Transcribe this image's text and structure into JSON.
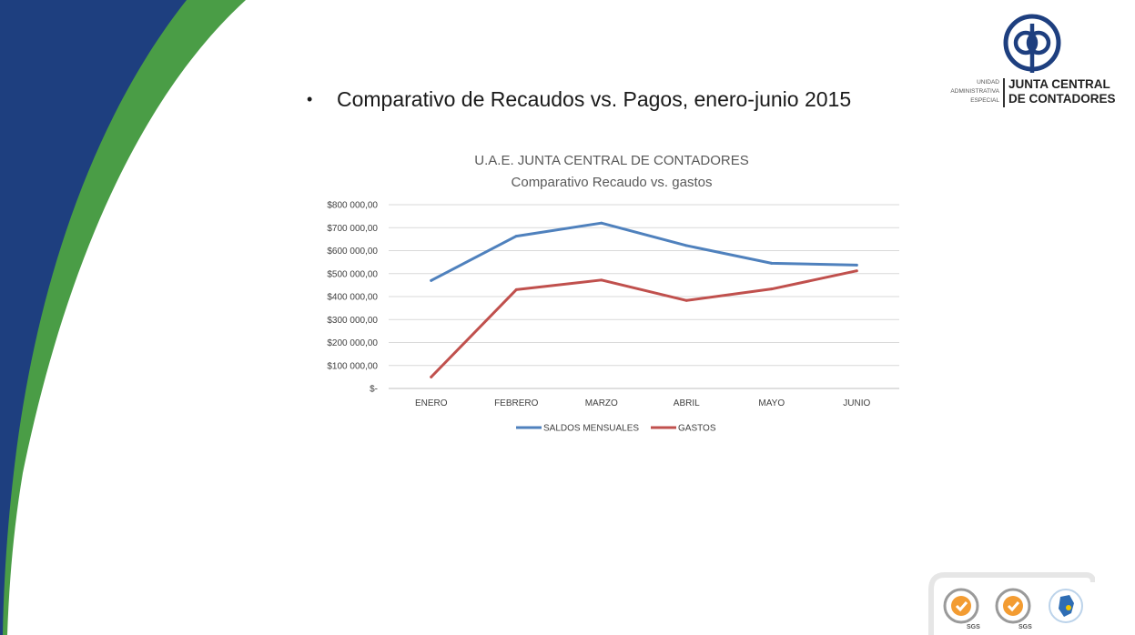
{
  "slide": {
    "bullet": "•",
    "headline": "Comparativo de Recaudos vs. Pagos, enero-junio 2015",
    "colors": {
      "blue": "#1e3f7f",
      "green": "#4a9d46"
    }
  },
  "logo": {
    "mark_icon": "jcc-logo-icon",
    "small_lines": [
      "UNIDAD",
      "ADMINISTRATIVA",
      "ESPECIAL"
    ],
    "big_lines": [
      "JUNTA CENTRAL",
      "DE CONTADORES"
    ]
  },
  "footer": {
    "badges": [
      "sgs-certification-icon",
      "sgs-certification-icon",
      "colombia-seal-icon"
    ],
    "badge_labels": [
      "SGS",
      "SGS"
    ]
  },
  "chart_data": {
    "type": "line",
    "title": "U.A.E. JUNTA CENTRAL DE CONTADORES",
    "subtitle": "Comparativo Recaudo vs. gastos",
    "categories": [
      "ENERO",
      "FEBRERO",
      "MARZO",
      "ABRIL",
      "MAYO",
      "JUNIO"
    ],
    "yticks": [
      "$800 000,00",
      "$700 000,00",
      "$600 000,00",
      "$500 000,00",
      "$400 000,00",
      "$300 000,00",
      "$200 000,00",
      "$100 000,00",
      "$-"
    ],
    "ylim": [
      0,
      800000
    ],
    "grid": true,
    "legend_position": "bottom",
    "series": [
      {
        "name": "SALDOS MENSUALES",
        "color": "#4f81bd",
        "values": [
          470000,
          663000,
          720000,
          622000,
          545000,
          537000
        ]
      },
      {
        "name": "GASTOS",
        "color": "#c0504d",
        "values": [
          50000,
          430000,
          472000,
          383000,
          433000,
          512000
        ]
      }
    ]
  }
}
